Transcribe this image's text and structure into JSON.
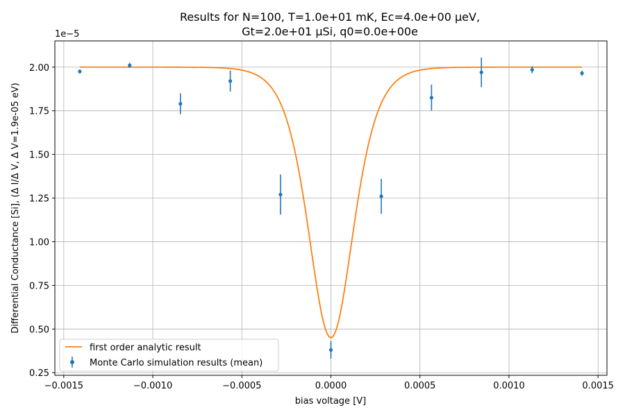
{
  "chart_data": {
    "type": "line",
    "title_line1": "Results for N=100, T=1.0e+01 mK, Ec=4.0e+00 μeV,",
    "title_line2": "Gt=2.0e+01 μSi, q0=0.0e+00e",
    "xlabel": "bias voltage [V]",
    "ylabel": "Differential Conductance [Si], (Δ I/Δ V, Δ V=1.9e-05 eV)",
    "y_offset_text": "1e−5",
    "xlim": [
      -0.00155,
      0.00155
    ],
    "ylim": [
      0.235,
      2.15
    ],
    "y_scale_factor": "1e-5",
    "grid": true,
    "legend_position": "lower-left",
    "x_ticks": [
      -0.0015,
      -0.001,
      -0.0005,
      0.0,
      0.0005,
      0.001,
      0.0015
    ],
    "x_tick_labels": [
      "−0.0015",
      "−0.0010",
      "−0.0005",
      "0.0000",
      "0.0005",
      "0.0010",
      "0.0015"
    ],
    "y_ticks": [
      0.25,
      0.5,
      0.75,
      1.0,
      1.25,
      1.5,
      1.75,
      2.0
    ],
    "y_tick_labels": [
      "0.25",
      "0.50",
      "0.75",
      "1.00",
      "1.25",
      "1.50",
      "1.75",
      "2.00"
    ],
    "series": [
      {
        "name": "first order analytic result",
        "kind": "line",
        "color": "#ff7f0e",
        "model": {
          "baseline": 2.0,
          "dip_min": 0.45,
          "width": 0.00017,
          "x_range": [
            -0.00141,
            0.00141
          ]
        }
      },
      {
        "name": "Monte Carlo simulation results (mean)",
        "kind": "errorbar",
        "color": "#1f77b4",
        "x": [
          -0.00141,
          -0.00113,
          -0.000845,
          -0.000565,
          -0.000283,
          0.0,
          0.000283,
          0.000565,
          0.000845,
          0.00113,
          0.00141
        ],
        "y": [
          1.975,
          2.01,
          1.79,
          1.92,
          1.27,
          0.38,
          1.26,
          1.825,
          1.97,
          1.985,
          1.965
        ],
        "yerr": [
          0.012,
          0.015,
          0.06,
          0.06,
          0.115,
          0.05,
          0.1,
          0.075,
          0.085,
          0.02,
          0.015
        ]
      }
    ]
  }
}
